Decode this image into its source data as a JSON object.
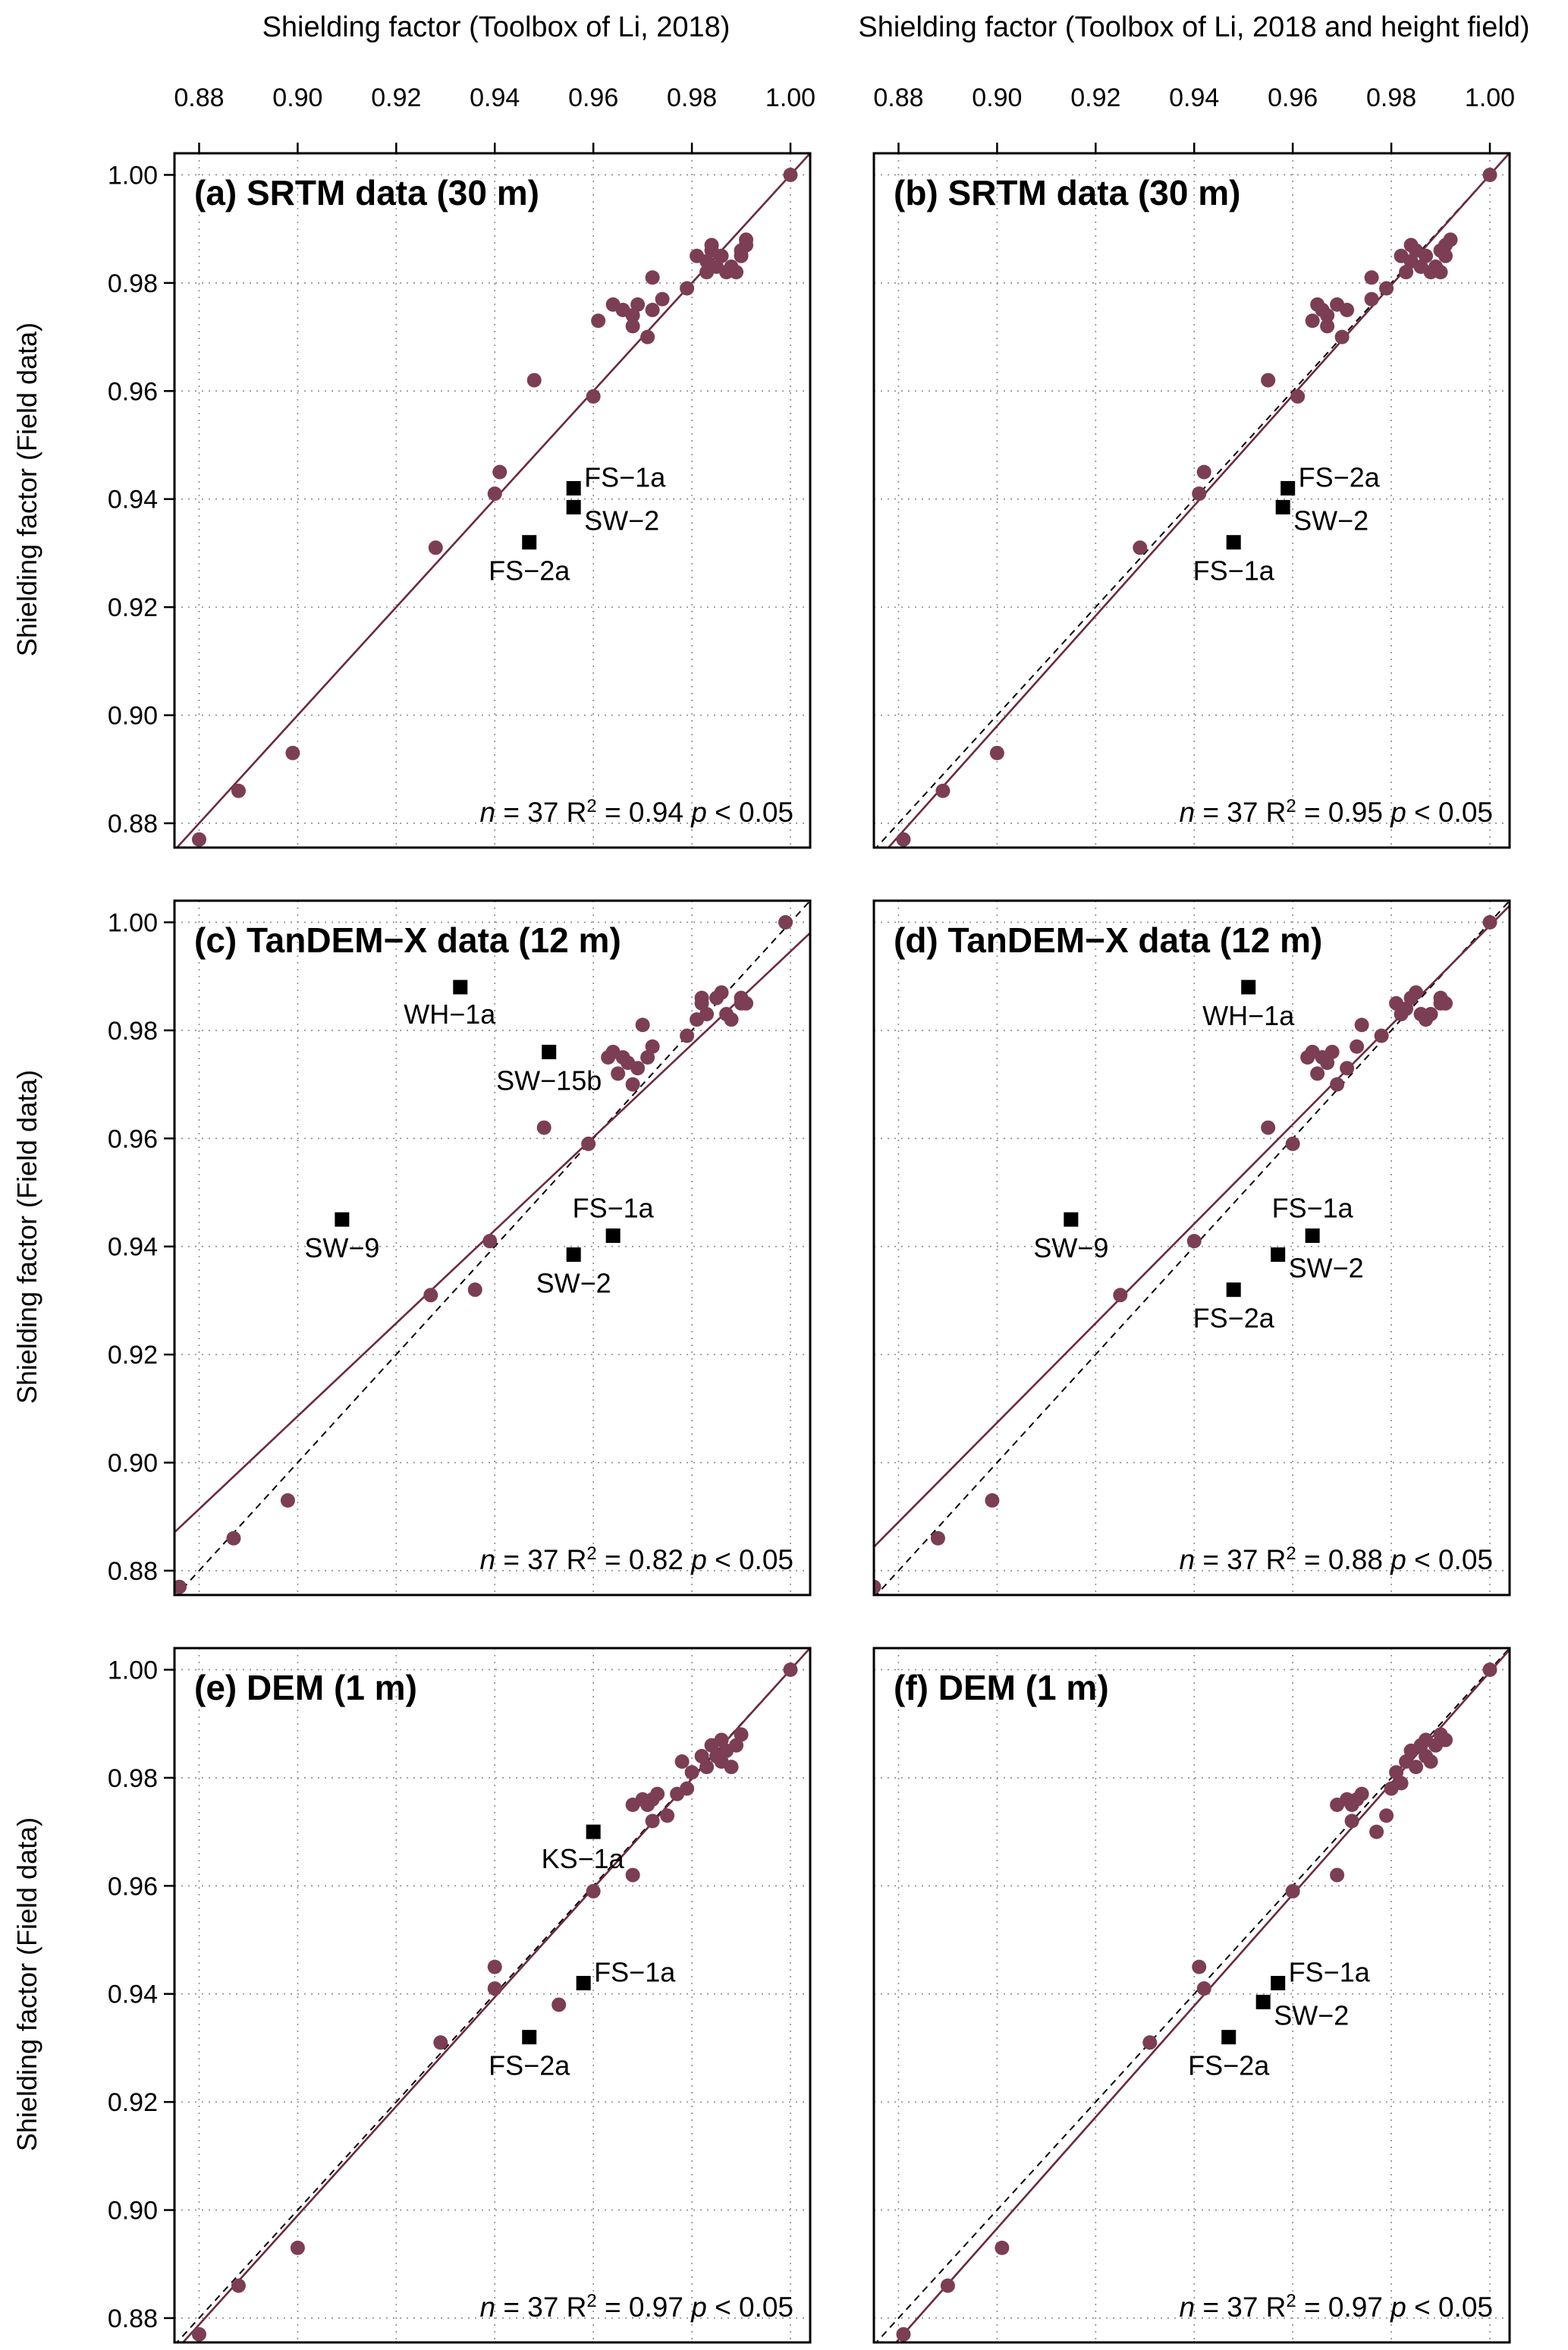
{
  "colors": {
    "points": "#7b3e54",
    "regression": "#6b2a3e",
    "outlier": "#000000"
  },
  "top_axis_titles": [
    "Shielding factor (Toolbox of Li, 2018)",
    "Shielding factor (Toolbox of Li, 2018 and height field)"
  ],
  "y_axis_title": "Shielding factor (Field data)",
  "chart_data": [
    {
      "type": "scatter",
      "panel": "a",
      "title": "(a) SRTM data (30 m)",
      "stats": {
        "n": "37",
        "r2": "0.94",
        "p": "0.05"
      },
      "xlim": [
        0.875,
        1.004
      ],
      "ylim": [
        0.8755,
        1.004
      ],
      "xticks": [
        "0.88",
        "0.90",
        "0.92",
        "0.94",
        "0.96",
        "0.98",
        "1.00"
      ],
      "yticks": [
        "0.88",
        "0.90",
        "0.92",
        "0.94",
        "0.96",
        "0.98",
        "1.00"
      ],
      "grid": true,
      "regression": {
        "slope": 1.0,
        "intercept": 0.0
      },
      "points": [
        [
          0.88,
          0.877
        ],
        [
          0.888,
          0.886
        ],
        [
          0.899,
          0.893
        ],
        [
          0.928,
          0.931
        ],
        [
          0.94,
          0.941
        ],
        [
          0.941,
          0.945
        ],
        [
          0.948,
          0.962
        ],
        [
          0.96,
          0.959
        ],
        [
          0.961,
          0.973
        ],
        [
          0.964,
          0.976
        ],
        [
          0.966,
          0.975
        ],
        [
          0.968,
          0.974
        ],
        [
          0.968,
          0.972
        ],
        [
          0.969,
          0.976
        ],
        [
          0.971,
          0.97
        ],
        [
          0.972,
          0.975
        ],
        [
          0.972,
          0.981
        ],
        [
          0.974,
          0.977
        ],
        [
          0.979,
          0.979
        ],
        [
          0.981,
          0.985
        ],
        [
          0.983,
          0.982
        ],
        [
          0.983,
          0.984
        ],
        [
          0.984,
          0.987
        ],
        [
          0.984,
          0.986
        ],
        [
          0.985,
          0.983
        ],
        [
          0.986,
          0.985
        ],
        [
          0.987,
          0.982
        ],
        [
          0.988,
          0.983
        ],
        [
          0.989,
          0.982
        ],
        [
          0.99,
          0.986
        ],
        [
          0.99,
          0.985
        ],
        [
          0.991,
          0.987
        ],
        [
          0.991,
          0.988
        ],
        [
          1.0,
          1.0
        ]
      ],
      "outliers": [
        {
          "x": 0.956,
          "y": 0.942,
          "label": "FS−1a",
          "anchor": "right-above"
        },
        {
          "x": 0.956,
          "y": 0.9385,
          "label": "SW−2",
          "anchor": "right-below"
        },
        {
          "x": 0.947,
          "y": 0.932,
          "label": "FS−2a",
          "anchor": "below"
        }
      ]
    },
    {
      "type": "scatter",
      "panel": "b",
      "title": "(b) SRTM data (30 m)",
      "stats": {
        "n": "37",
        "r2": "0.95",
        "p": "0.05"
      },
      "xlim": [
        0.875,
        1.004
      ],
      "ylim": [
        0.8755,
        1.004
      ],
      "xticks": [
        "0.88",
        "0.90",
        "0.92",
        "0.94",
        "0.96",
        "0.98",
        "1.00"
      ],
      "yticks": [
        "0.88",
        "0.90",
        "0.92",
        "0.94",
        "0.96",
        "0.98",
        "1.00"
      ],
      "grid": true,
      "regression": {
        "slope": 1.02,
        "intercept": -0.02
      },
      "points": [
        [
          0.881,
          0.877
        ],
        [
          0.889,
          0.886
        ],
        [
          0.9,
          0.893
        ],
        [
          0.929,
          0.931
        ],
        [
          0.941,
          0.941
        ],
        [
          0.942,
          0.945
        ],
        [
          0.955,
          0.962
        ],
        [
          0.961,
          0.959
        ],
        [
          0.964,
          0.973
        ],
        [
          0.965,
          0.976
        ],
        [
          0.966,
          0.975
        ],
        [
          0.967,
          0.974
        ],
        [
          0.967,
          0.972
        ],
        [
          0.969,
          0.976
        ],
        [
          0.97,
          0.97
        ],
        [
          0.971,
          0.975
        ],
        [
          0.976,
          0.981
        ],
        [
          0.976,
          0.977
        ],
        [
          0.979,
          0.979
        ],
        [
          0.982,
          0.985
        ],
        [
          0.983,
          0.982
        ],
        [
          0.984,
          0.984
        ],
        [
          0.984,
          0.987
        ],
        [
          0.985,
          0.986
        ],
        [
          0.986,
          0.983
        ],
        [
          0.987,
          0.985
        ],
        [
          0.988,
          0.982
        ],
        [
          0.989,
          0.983
        ],
        [
          0.99,
          0.982
        ],
        [
          0.99,
          0.986
        ],
        [
          0.991,
          0.985
        ],
        [
          0.991,
          0.987
        ],
        [
          0.992,
          0.988
        ],
        [
          1.0,
          1.0
        ]
      ],
      "outliers": [
        {
          "x": 0.959,
          "y": 0.942,
          "label": "FS−2a",
          "anchor": "right-above"
        },
        {
          "x": 0.958,
          "y": 0.9385,
          "label": "SW−2",
          "anchor": "right-below"
        },
        {
          "x": 0.948,
          "y": 0.932,
          "label": "FS−1a",
          "anchor": "below"
        }
      ]
    },
    {
      "type": "scatter",
      "panel": "c",
      "title": "(c) TanDEM−X data (12 m)",
      "stats": {
        "n": "37",
        "r2": "0.82",
        "p": "0.05"
      },
      "xlim": [
        0.875,
        1.004
      ],
      "ylim": [
        0.8755,
        1.004
      ],
      "xticks": [
        "0.88",
        "0.90",
        "0.92",
        "0.94",
        "0.96",
        "0.98",
        "1.00"
      ],
      "yticks": [
        "0.88",
        "0.90",
        "0.92",
        "0.94",
        "0.96",
        "0.98",
        "1.00"
      ],
      "grid": true,
      "regression": {
        "slope": 0.86,
        "intercept": 0.1346
      },
      "points": [
        [
          0.876,
          0.877
        ],
        [
          0.887,
          0.886
        ],
        [
          0.898,
          0.893
        ],
        [
          0.927,
          0.931
        ],
        [
          0.936,
          0.932
        ],
        [
          0.939,
          0.941
        ],
        [
          0.95,
          0.962
        ],
        [
          0.959,
          0.959
        ],
        [
          0.963,
          0.975
        ],
        [
          0.964,
          0.976
        ],
        [
          0.965,
          0.972
        ],
        [
          0.966,
          0.975
        ],
        [
          0.967,
          0.974
        ],
        [
          0.968,
          0.97
        ],
        [
          0.969,
          0.973
        ],
        [
          0.97,
          0.981
        ],
        [
          0.971,
          0.975
        ],
        [
          0.972,
          0.977
        ],
        [
          0.979,
          0.979
        ],
        [
          0.981,
          0.982
        ],
        [
          0.982,
          0.985
        ],
        [
          0.982,
          0.986
        ],
        [
          0.983,
          0.983
        ],
        [
          0.985,
          0.986
        ],
        [
          0.986,
          0.987
        ],
        [
          0.987,
          0.983
        ],
        [
          0.988,
          0.982
        ],
        [
          0.99,
          0.986
        ],
        [
          0.99,
          0.985
        ],
        [
          0.991,
          0.985
        ],
        [
          0.999,
          1.0
        ]
      ],
      "outliers": [
        {
          "x": 0.933,
          "y": 0.988,
          "label": "WH−1a",
          "anchor": "below-left"
        },
        {
          "x": 0.951,
          "y": 0.976,
          "label": "SW−15b",
          "anchor": "below"
        },
        {
          "x": 0.909,
          "y": 0.945,
          "label": "SW−9",
          "anchor": "below"
        },
        {
          "x": 0.964,
          "y": 0.942,
          "label": "FS−1a",
          "anchor": "above"
        },
        {
          "x": 0.956,
          "y": 0.9385,
          "label": "SW−2",
          "anchor": "below"
        }
      ]
    },
    {
      "type": "scatter",
      "panel": "d",
      "title": "(d) TanDEM−X data (12 m)",
      "stats": {
        "n": "37",
        "r2": "0.88",
        "p": "0.05"
      },
      "xlim": [
        0.875,
        1.004
      ],
      "ylim": [
        0.8755,
        1.004
      ],
      "xticks": [
        "0.88",
        "0.90",
        "0.92",
        "0.94",
        "0.96",
        "0.98",
        "1.00"
      ],
      "yticks": [
        "0.88",
        "0.90",
        "0.92",
        "0.94",
        "0.96",
        "0.98",
        "1.00"
      ],
      "grid": true,
      "regression": {
        "slope": 0.92,
        "intercept": 0.0794
      },
      "points": [
        [
          0.875,
          0.877
        ],
        [
          0.888,
          0.886
        ],
        [
          0.899,
          0.893
        ],
        [
          0.925,
          0.931
        ],
        [
          0.94,
          0.941
        ],
        [
          0.955,
          0.962
        ],
        [
          0.96,
          0.959
        ],
        [
          0.963,
          0.975
        ],
        [
          0.964,
          0.976
        ],
        [
          0.965,
          0.972
        ],
        [
          0.966,
          0.975
        ],
        [
          0.967,
          0.974
        ],
        [
          0.968,
          0.976
        ],
        [
          0.969,
          0.97
        ],
        [
          0.971,
          0.973
        ],
        [
          0.973,
          0.977
        ],
        [
          0.974,
          0.981
        ],
        [
          0.978,
          0.979
        ],
        [
          0.981,
          0.985
        ],
        [
          0.982,
          0.983
        ],
        [
          0.983,
          0.984
        ],
        [
          0.984,
          0.986
        ],
        [
          0.985,
          0.987
        ],
        [
          0.986,
          0.983
        ],
        [
          0.987,
          0.982
        ],
        [
          0.988,
          0.983
        ],
        [
          0.99,
          0.985
        ],
        [
          0.99,
          0.986
        ],
        [
          0.991,
          0.985
        ],
        [
          1.0,
          1.0
        ]
      ],
      "outliers": [
        {
          "x": 0.951,
          "y": 0.988,
          "label": "WH−1a",
          "anchor": "below"
        },
        {
          "x": 0.915,
          "y": 0.945,
          "label": "SW−9",
          "anchor": "below"
        },
        {
          "x": 0.964,
          "y": 0.942,
          "label": "FS−1a",
          "anchor": "above"
        },
        {
          "x": 0.957,
          "y": 0.9385,
          "label": "SW−2",
          "anchor": "right-below"
        },
        {
          "x": 0.948,
          "y": 0.932,
          "label": "FS−2a",
          "anchor": "below"
        }
      ]
    },
    {
      "type": "scatter",
      "panel": "e",
      "title": "(e) DEM (1 m)",
      "stats": {
        "n": "37",
        "r2": "0.97",
        "p": "0.05"
      },
      "xlim": [
        0.875,
        1.004
      ],
      "ylim": [
        0.8755,
        1.004
      ],
      "xticks": [
        "0.88",
        "0.90",
        "0.92",
        "0.94",
        "0.96",
        "0.98",
        "1.00"
      ],
      "yticks": [
        "0.88",
        "0.90",
        "0.92",
        "0.94",
        "0.96",
        "0.98",
        "1.00"
      ],
      "grid": true,
      "regression": {
        "slope": 1.01,
        "intercept": -0.01
      },
      "points": [
        [
          0.88,
          0.877
        ],
        [
          0.888,
          0.886
        ],
        [
          0.9,
          0.893
        ],
        [
          0.929,
          0.931
        ],
        [
          0.94,
          0.945
        ],
        [
          0.94,
          0.941
        ],
        [
          0.953,
          0.938
        ],
        [
          0.96,
          0.959
        ],
        [
          0.968,
          0.962
        ],
        [
          0.968,
          0.975
        ],
        [
          0.97,
          0.976
        ],
        [
          0.971,
          0.975
        ],
        [
          0.972,
          0.972
        ],
        [
          0.972,
          0.976
        ],
        [
          0.973,
          0.977
        ],
        [
          0.975,
          0.973
        ],
        [
          0.977,
          0.977
        ],
        [
          0.978,
          0.983
        ],
        [
          0.979,
          0.978
        ],
        [
          0.98,
          0.981
        ],
        [
          0.982,
          0.984
        ],
        [
          0.983,
          0.982
        ],
        [
          0.984,
          0.986
        ],
        [
          0.985,
          0.984
        ],
        [
          0.986,
          0.983
        ],
        [
          0.986,
          0.987
        ],
        [
          0.987,
          0.985
        ],
        [
          0.988,
          0.982
        ],
        [
          0.989,
          0.986
        ],
        [
          0.99,
          0.988
        ],
        [
          1.0,
          1.0
        ]
      ],
      "outliers": [
        {
          "x": 0.96,
          "y": 0.97,
          "label": "KS−1a",
          "anchor": "below-left"
        },
        {
          "x": 0.958,
          "y": 0.942,
          "label": "FS−1a",
          "anchor": "right-above"
        },
        {
          "x": 0.947,
          "y": 0.932,
          "label": "FS−2a",
          "anchor": "below"
        }
      ]
    },
    {
      "type": "scatter",
      "panel": "f",
      "title": "(f) DEM (1 m)",
      "stats": {
        "n": "37",
        "r2": "0.97",
        "p": "0.05"
      },
      "xlim": [
        0.875,
        1.004
      ],
      "ylim": [
        0.8755,
        1.004
      ],
      "xticks": [
        "0.88",
        "0.90",
        "0.92",
        "0.94",
        "0.96",
        "0.98",
        "1.00"
      ],
      "yticks": [
        "0.88",
        "0.90",
        "0.92",
        "0.94",
        "0.96",
        "0.98",
        "1.00"
      ],
      "grid": true,
      "regression": {
        "slope": 1.03,
        "intercept": -0.0304
      },
      "points": [
        [
          0.881,
          0.877
        ],
        [
          0.89,
          0.886
        ],
        [
          0.901,
          0.893
        ],
        [
          0.931,
          0.931
        ],
        [
          0.941,
          0.945
        ],
        [
          0.942,
          0.941
        ],
        [
          0.96,
          0.959
        ],
        [
          0.969,
          0.962
        ],
        [
          0.969,
          0.975
        ],
        [
          0.971,
          0.976
        ],
        [
          0.972,
          0.975
        ],
        [
          0.972,
          0.972
        ],
        [
          0.973,
          0.976
        ],
        [
          0.974,
          0.977
        ],
        [
          0.977,
          0.97
        ],
        [
          0.979,
          0.973
        ],
        [
          0.98,
          0.978
        ],
        [
          0.981,
          0.981
        ],
        [
          0.982,
          0.979
        ],
        [
          0.983,
          0.983
        ],
        [
          0.984,
          0.985
        ],
        [
          0.985,
          0.982
        ],
        [
          0.986,
          0.986
        ],
        [
          0.987,
          0.984
        ],
        [
          0.987,
          0.987
        ],
        [
          0.988,
          0.983
        ],
        [
          0.989,
          0.986
        ],
        [
          0.99,
          0.988
        ],
        [
          0.991,
          0.987
        ],
        [
          1.0,
          1.0
        ]
      ],
      "outliers": [
        {
          "x": 0.957,
          "y": 0.942,
          "label": "FS−1a",
          "anchor": "right-above"
        },
        {
          "x": 0.954,
          "y": 0.9385,
          "label": "SW−2",
          "anchor": "right-below"
        },
        {
          "x": 0.947,
          "y": 0.932,
          "label": "FS−2a",
          "anchor": "below"
        }
      ]
    }
  ]
}
